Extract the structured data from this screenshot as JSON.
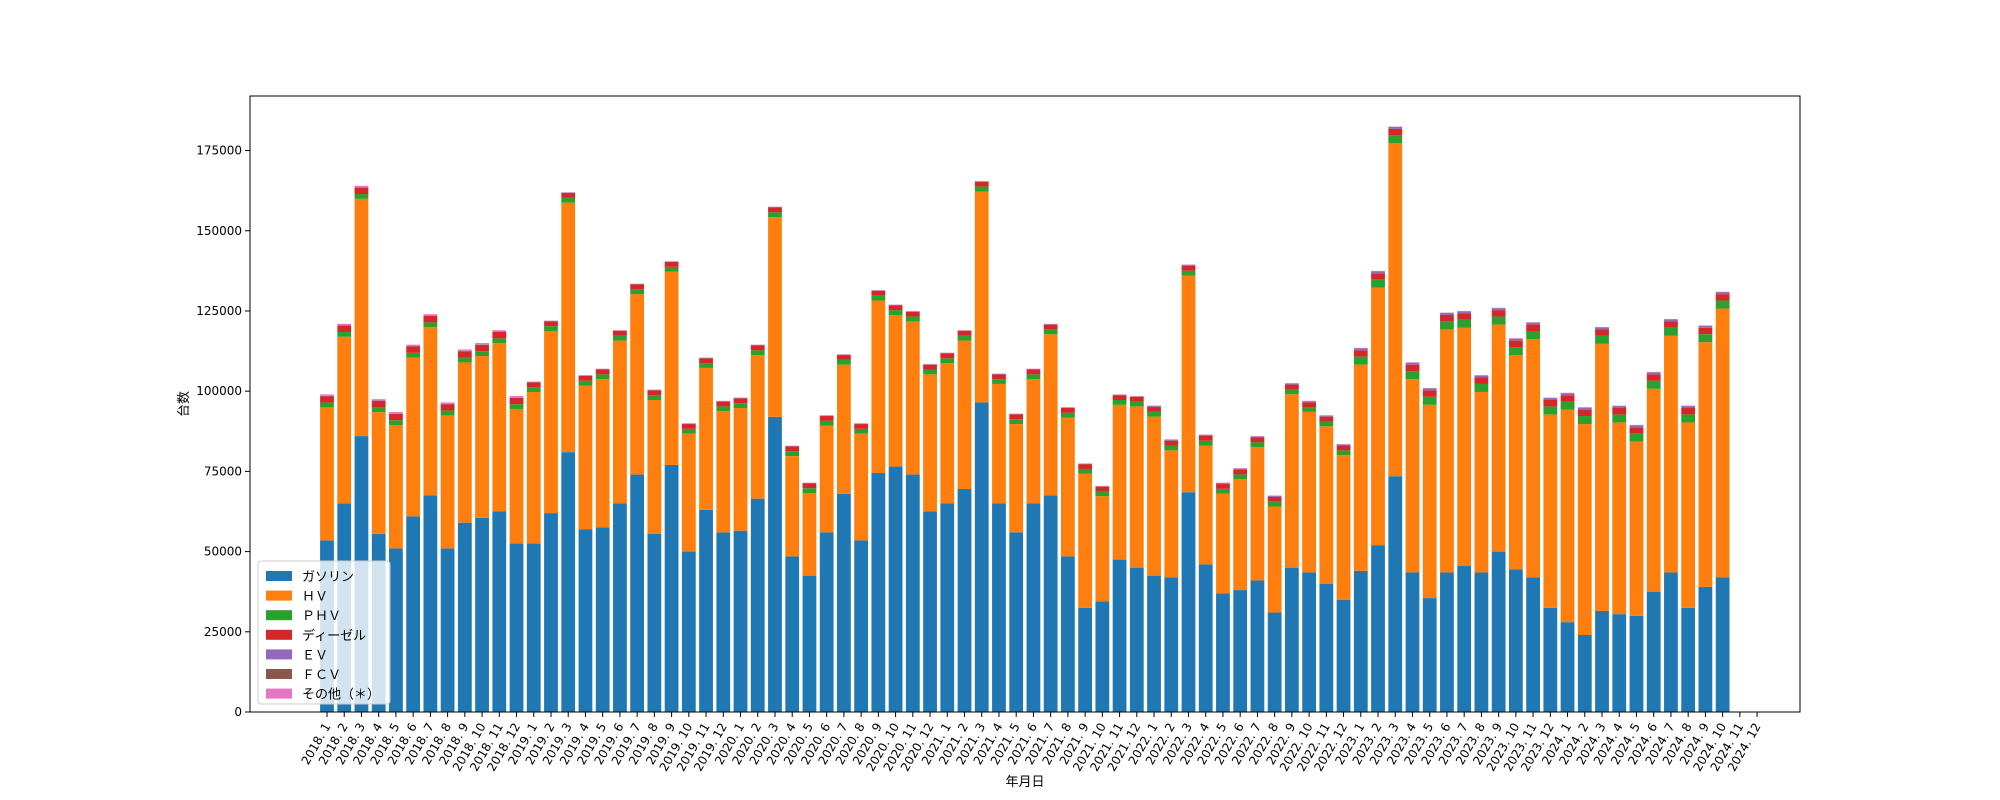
{
  "chart_data": {
    "type": "bar",
    "stacked": true,
    "title": "",
    "xlabel": "年月日",
    "ylabel": "台数",
    "ylim": [
      0,
      192000
    ],
    "yticks": [
      0,
      25000,
      50000,
      75000,
      100000,
      125000,
      150000,
      175000
    ],
    "grid": false,
    "legend_position": "lower-left",
    "categories": [
      "2018. 1",
      "2018. 2",
      "2018. 3",
      "2018. 4",
      "2018. 5",
      "2018. 6",
      "2018. 7",
      "2018. 8",
      "2018. 9",
      "2018. 10",
      "2018. 11",
      "2018. 12",
      "2019. 1",
      "2019. 2",
      "2019. 3",
      "2019. 4",
      "2019. 5",
      "2019. 6",
      "2019. 7",
      "2019. 8",
      "2019. 9",
      "2019. 10",
      "2019. 11",
      "2019. 12",
      "2020. 1",
      "2020. 2",
      "2020. 3",
      "2020. 4",
      "2020. 5",
      "2020. 6",
      "2020. 7",
      "2020. 8",
      "2020. 9",
      "2020. 10",
      "2020. 11",
      "2020. 12",
      "2021. 1",
      "2021. 2",
      "2021. 3",
      "2021. 4",
      "2021. 5",
      "2021. 6",
      "2021. 7",
      "2021. 8",
      "2021. 9",
      "2021. 10",
      "2021. 11",
      "2021. 12",
      "2022. 1",
      "2022. 2",
      "2022. 3",
      "2022. 4",
      "2022. 5",
      "2022. 6",
      "2022. 7",
      "2022. 8",
      "2022. 9",
      "2022. 10",
      "2022. 11",
      "2022. 12",
      "2023. 1",
      "2023. 2",
      "2023. 3",
      "2023. 4",
      "2023. 5",
      "2023. 6",
      "2023. 7",
      "2023. 8",
      "2023. 9",
      "2023. 10",
      "2023. 11",
      "2023. 12",
      "2024. 1",
      "2024. 2",
      "2024. 3",
      "2024. 4",
      "2024. 5",
      "2024. 6",
      "2024. 7",
      "2024. 8",
      "2024. 9",
      "2024. 10",
      "2024. 11",
      "2024. 12"
    ],
    "series": [
      {
        "name": "ガソリン",
        "color": "#1f77b4",
        "values": [
          53500,
          65000,
          86000,
          55500,
          51000,
          61000,
          67500,
          51000,
          59000,
          60500,
          62500,
          52500,
          52500,
          62000,
          81000,
          57000,
          57500,
          65000,
          74000,
          55500,
          77000,
          50000,
          63000,
          56000,
          56500,
          66500,
          92000,
          48500,
          42500,
          56000,
          68000,
          53500,
          74500,
          76500,
          74000,
          62500,
          65000,
          69500,
          96500,
          65000,
          56000,
          65000,
          67500,
          48500,
          32500,
          34500,
          47500,
          45000,
          42500,
          42000,
          68500,
          46000,
          37000,
          38000,
          41000,
          31000,
          45000,
          43500,
          40000,
          35000,
          44000,
          52000,
          73500,
          43500,
          35500,
          43500,
          45500,
          43500,
          50000,
          44500,
          42000,
          32500,
          28000,
          24000,
          31500,
          30500,
          30000,
          37500,
          43500,
          32500,
          39000,
          42000,
          null,
          null
        ]
      },
      {
        "name": "ＨＶ",
        "color": "#ff7f0e",
        "values": [
          41450,
          51950,
          73950,
          37950,
          38450,
          49450,
          52450,
          41450,
          49950,
          50450,
          52450,
          41950,
          47250,
          56750,
          77750,
          44750,
          46250,
          50750,
          56250,
          41750,
          60250,
          36750,
          44250,
          37750,
          38250,
          44750,
          62250,
          31250,
          25750,
          33250,
          40250,
          33250,
          53750,
          47250,
          47750,
          42750,
          43750,
          46250,
          65750,
          37250,
          33750,
          38750,
          50250,
          43250,
          41750,
          32750,
          48250,
          50250,
          49550,
          39550,
          67550,
          37050,
          31050,
          34550,
          41550,
          33050,
          54050,
          50050,
          49050,
          45050,
          64250,
          80250,
          103750,
          60250,
          60250,
          75750,
          74250,
          56250,
          70750,
          66750,
          74250,
          60250,
          66250,
          65750,
          83250,
          59750,
          54250,
          63250,
          73750,
          57750,
          76250,
          83750,
          null,
          null
        ]
      },
      {
        "name": "ＰＨＶ",
        "color": "#2ca02c",
        "values": [
          1500,
          1500,
          1500,
          1500,
          1500,
          1500,
          1500,
          1500,
          1500,
          1500,
          1500,
          1500,
          1500,
          1500,
          1500,
          1500,
          1500,
          1500,
          1500,
          1500,
          1500,
          1500,
          1500,
          1500,
          1500,
          1500,
          1500,
          1500,
          1500,
          1500,
          1500,
          1500,
          1500,
          1500,
          1500,
          1500,
          1500,
          1500,
          1500,
          1500,
          1500,
          1500,
          1500,
          1500,
          1500,
          1500,
          1500,
          1500,
          1500,
          1500,
          1500,
          1500,
          1500,
          1500,
          1500,
          1500,
          1500,
          1500,
          1500,
          1500,
          2500,
          2500,
          2500,
          2500,
          2500,
          2500,
          2500,
          2500,
          2500,
          2500,
          2500,
          2500,
          2500,
          2500,
          2500,
          2500,
          2500,
          2500,
          2500,
          2500,
          2500,
          2500,
          null,
          null
        ]
      },
      {
        "name": "ディーゼル",
        "color": "#d62728",
        "values": [
          2000,
          2000,
          2000,
          2000,
          2000,
          2000,
          2000,
          2000,
          2000,
          2000,
          2000,
          2000,
          1500,
          1500,
          1500,
          1500,
          1500,
          1500,
          1500,
          1500,
          1500,
          1500,
          1500,
          1500,
          1500,
          1500,
          1500,
          1500,
          1500,
          1500,
          1500,
          1500,
          1500,
          1500,
          1500,
          1500,
          1500,
          1500,
          1500,
          1500,
          1500,
          1500,
          1500,
          1500,
          1500,
          1500,
          1500,
          1500,
          1500,
          1500,
          1500,
          1500,
          1500,
          1500,
          1500,
          1500,
          1500,
          1500,
          1500,
          1500,
          2000,
          2000,
          2000,
          2000,
          2000,
          2000,
          2000,
          2000,
          2000,
          2000,
          2000,
          2000,
          2000,
          2000,
          2000,
          2000,
          2000,
          2000,
          2000,
          2000,
          2000,
          2000,
          null,
          null
        ]
      },
      {
        "name": "ＥＶ",
        "color": "#9467bd",
        "values": [
          100,
          100,
          100,
          100,
          100,
          100,
          100,
          100,
          100,
          100,
          100,
          100,
          100,
          100,
          100,
          100,
          100,
          100,
          100,
          100,
          100,
          100,
          100,
          100,
          100,
          100,
          100,
          100,
          100,
          100,
          100,
          100,
          100,
          100,
          100,
          100,
          100,
          100,
          100,
          100,
          100,
          100,
          100,
          100,
          100,
          100,
          100,
          100,
          300,
          300,
          300,
          300,
          300,
          300,
          300,
          300,
          300,
          300,
          300,
          300,
          600,
          600,
          600,
          600,
          600,
          600,
          600,
          600,
          600,
          600,
          600,
          600,
          600,
          600,
          600,
          600,
          600,
          600,
          600,
          600,
          600,
          600,
          null,
          null
        ]
      },
      {
        "name": "ＦＣＶ",
        "color": "#8c564b",
        "values": [
          50,
          50,
          50,
          50,
          50,
          50,
          50,
          50,
          50,
          50,
          50,
          50,
          50,
          50,
          50,
          50,
          50,
          50,
          50,
          50,
          50,
          50,
          50,
          50,
          50,
          50,
          50,
          50,
          50,
          50,
          50,
          50,
          50,
          50,
          50,
          50,
          50,
          50,
          50,
          50,
          50,
          50,
          50,
          50,
          50,
          50,
          50,
          50,
          50,
          50,
          50,
          50,
          50,
          50,
          50,
          50,
          50,
          50,
          50,
          50,
          50,
          50,
          50,
          50,
          50,
          50,
          50,
          50,
          50,
          50,
          50,
          50,
          50,
          50,
          50,
          50,
          50,
          50,
          50,
          50,
          50,
          50,
          null,
          null
        ]
      },
      {
        "name": "その他（＊）",
        "color": "#e377c2",
        "values": [
          400,
          400,
          400,
          400,
          400,
          400,
          400,
          400,
          400,
          400,
          400,
          400,
          100,
          100,
          100,
          100,
          100,
          100,
          100,
          100,
          100,
          100,
          100,
          100,
          100,
          100,
          100,
          100,
          100,
          100,
          100,
          100,
          100,
          100,
          100,
          100,
          100,
          100,
          100,
          100,
          100,
          100,
          100,
          100,
          100,
          100,
          100,
          100,
          100,
          100,
          100,
          100,
          100,
          100,
          100,
          100,
          100,
          100,
          100,
          100,
          100,
          100,
          100,
          100,
          100,
          100,
          100,
          100,
          100,
          100,
          100,
          100,
          100,
          100,
          100,
          100,
          100,
          100,
          100,
          100,
          100,
          100,
          null,
          null
        ]
      }
    ]
  }
}
